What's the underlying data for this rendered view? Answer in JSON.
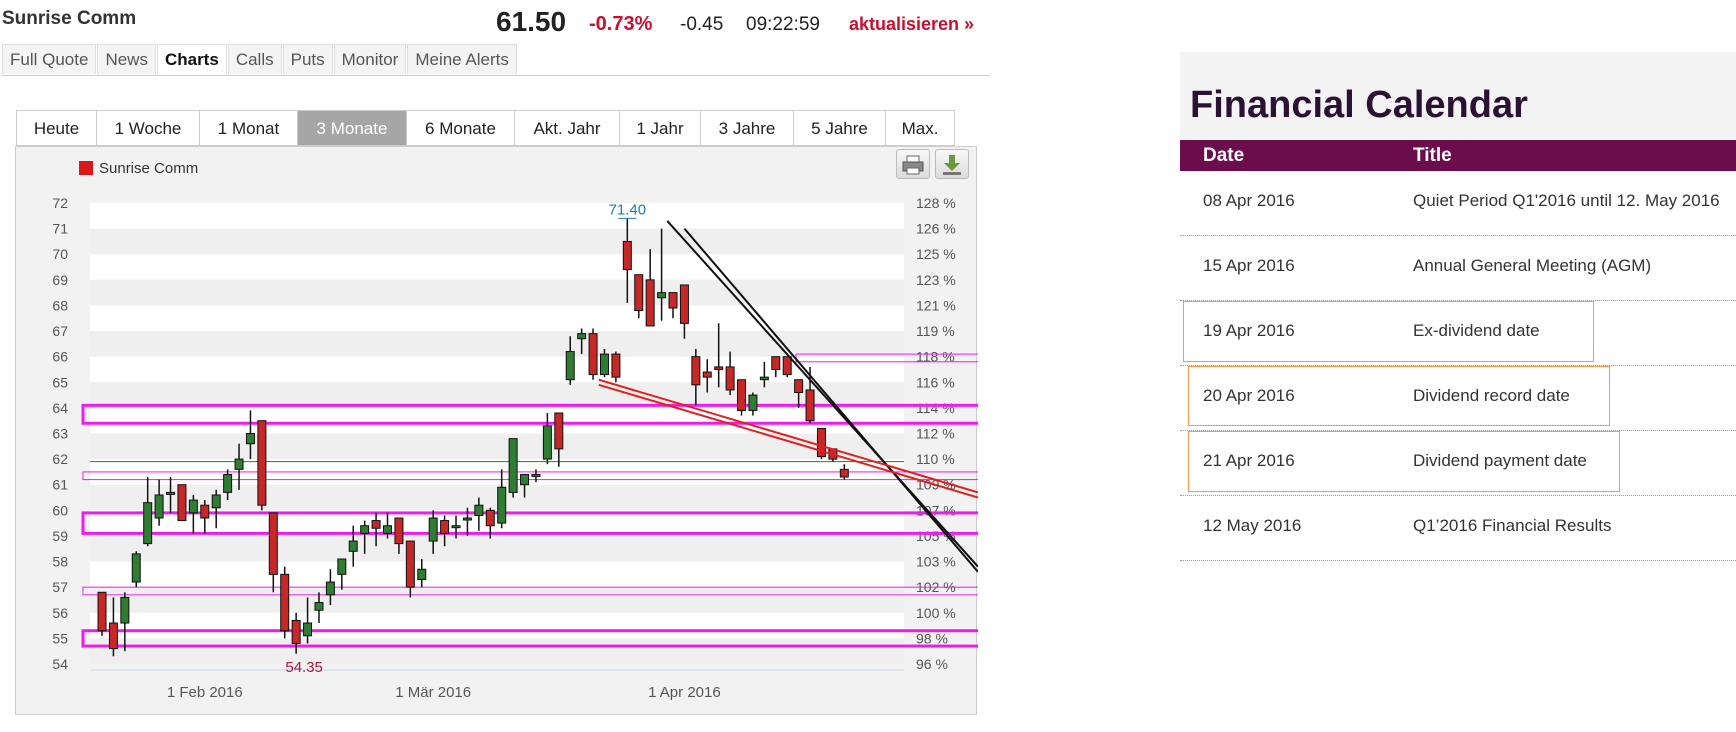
{
  "quote": {
    "company": "Sunrise Comm",
    "price": "61.50",
    "change_pct": "-0.73%",
    "change_abs": "-0.45",
    "time": "09:22:59",
    "refresh_label": "aktualisieren »"
  },
  "nav_tabs": [
    "Full Quote",
    "News",
    "Charts",
    "Calls",
    "Puts",
    "Monitor",
    "Meine Alerts"
  ],
  "nav_active": "Charts",
  "range_tabs": [
    "Heute",
    "1 Woche",
    "1 Monat",
    "3 Monate",
    "6 Monate",
    "Akt. Jahr",
    "1 Jahr",
    "3 Jahre",
    "5 Jahre",
    "Max."
  ],
  "range_active": "3 Monate",
  "toolbar": {
    "print_icon": "printer-icon",
    "download_icon": "download-icon"
  },
  "chart_data": {
    "type": "candlestick",
    "legend": "Sunrise Comm",
    "legend_color": "#d7191c",
    "up_color": "#2e7d32",
    "down_color": "#c62828",
    "ylim": [
      54,
      72
    ],
    "yticks": [
      "72",
      "71",
      "70",
      "69",
      "68",
      "67",
      "66",
      "65",
      "64",
      "63",
      "62",
      "61",
      "60",
      "59",
      "58",
      "57",
      "56",
      "55",
      "54"
    ],
    "y2ticks": [
      "128 %",
      "126 %",
      "125 %",
      "123 %",
      "121 %",
      "119 %",
      "118 %",
      "116 %",
      "114 %",
      "112 %",
      "110 %",
      "109 %",
      "107 %",
      "105 %",
      "103 %",
      "102 %",
      "100 %",
      "98 %",
      "96 %"
    ],
    "xticks": [
      {
        "label": "1 Feb 2016",
        "index": 9
      },
      {
        "label": "1 Mär 2016",
        "index": 29
      },
      {
        "label": "1 Apr 2016",
        "index": 51
      }
    ],
    "max_label": "71.40",
    "min_label": "54.35",
    "candles": [
      [
        56.8,
        56.6,
        55.3,
        55.1,
        56.8
      ],
      [
        55.6,
        55.4,
        54.6,
        54.3,
        56.6
      ],
      [
        55.6,
        55.4,
        56.6,
        54.5,
        56.8
      ],
      [
        57.2,
        57.1,
        58.3,
        57.0,
        58.4
      ],
      [
        58.7,
        58.5,
        60.3,
        58.6,
        61.3
      ],
      [
        59.7,
        59.6,
        60.6,
        59.4,
        61.2
      ],
      [
        60.7,
        60.7,
        60.7,
        59.9,
        61.3
      ],
      [
        61.0,
        60.9,
        59.6,
        59.6,
        61.0
      ],
      [
        59.9,
        59.8,
        60.4,
        59.1,
        60.6
      ],
      [
        60.2,
        60.1,
        59.7,
        59.1,
        60.4
      ],
      [
        60.1,
        60.0,
        60.6,
        59.3,
        60.8
      ],
      [
        60.7,
        60.5,
        61.4,
        60.4,
        61.6
      ],
      [
        61.6,
        61.4,
        62.0,
        60.8,
        62.6
      ],
      [
        62.6,
        62.4,
        63.0,
        62.0,
        63.9
      ],
      [
        63.5,
        63.3,
        60.2,
        60.0,
        63.5
      ],
      [
        59.9,
        59.8,
        57.5,
        56.8,
        59.9
      ],
      [
        57.5,
        57.3,
        55.3,
        55.0,
        57.8
      ],
      [
        55.7,
        55.5,
        54.8,
        54.4,
        56.0
      ],
      [
        55.1,
        55.0,
        55.6,
        54.8,
        56.6
      ],
      [
        56.1,
        56.0,
        56.4,
        55.6,
        56.8
      ],
      [
        56.7,
        56.4,
        57.2,
        56.3,
        57.7
      ],
      [
        57.5,
        57.4,
        58.1,
        56.9,
        58.1
      ],
      [
        58.4,
        58.3,
        58.8,
        57.8,
        59.4
      ],
      [
        59.1,
        59.0,
        59.4,
        58.3,
        59.6
      ],
      [
        59.6,
        59.4,
        59.3,
        58.6,
        59.9
      ],
      [
        59.1,
        58.9,
        59.4,
        58.9,
        59.9
      ],
      [
        59.7,
        59.6,
        58.7,
        58.3,
        59.7
      ],
      [
        58.8,
        58.7,
        57.0,
        56.6,
        58.8
      ],
      [
        57.3,
        57.2,
        57.7,
        57.0,
        58.1
      ],
      [
        58.8,
        58.7,
        59.7,
        58.3,
        60.0
      ],
      [
        59.6,
        59.4,
        59.1,
        58.6,
        59.8
      ],
      [
        59.4,
        59.3,
        59.4,
        58.9,
        59.8
      ],
      [
        59.7,
        59.6,
        59.7,
        59.0,
        60.1
      ],
      [
        59.8,
        59.7,
        60.2,
        59.2,
        60.5
      ],
      [
        60.0,
        59.9,
        59.4,
        58.9,
        60.1
      ],
      [
        59.5,
        59.3,
        60.9,
        59.3,
        61.6
      ],
      [
        60.7,
        60.5,
        62.8,
        60.5,
        62.8
      ],
      [
        61.0,
        60.8,
        61.4,
        60.5,
        61.4
      ],
      [
        61.4,
        61.4,
        61.4,
        61.1,
        61.6
      ],
      [
        62.0,
        61.9,
        63.3,
        61.8,
        63.8
      ],
      [
        63.8,
        63.6,
        62.4,
        61.7,
        63.8
      ],
      [
        65.1,
        64.9,
        66.2,
        64.9,
        66.8
      ],
      [
        66.7,
        66.6,
        66.9,
        66.1,
        67.1
      ],
      [
        66.9,
        66.8,
        65.3,
        65.1,
        67.1
      ],
      [
        65.3,
        65.2,
        66.1,
        65.2,
        66.3
      ],
      [
        66.1,
        66.0,
        65.2,
        65.0,
        66.2
      ],
      [
        70.5,
        70.4,
        69.4,
        68.1,
        71.4
      ],
      [
        69.2,
        69.1,
        67.8,
        67.5,
        69.2
      ],
      [
        69.0,
        68.9,
        67.2,
        67.2,
        70.2
      ],
      [
        68.3,
        68.2,
        68.5,
        67.4,
        71.0
      ],
      [
        68.5,
        68.3,
        67.9,
        67.5,
        68.5
      ],
      [
        68.8,
        68.7,
        67.3,
        66.7,
        68.8
      ],
      [
        66.0,
        65.9,
        64.9,
        64.1,
        66.3
      ],
      [
        65.4,
        65.3,
        65.2,
        64.6,
        65.9
      ],
      [
        65.6,
        65.5,
        65.5,
        64.8,
        67.3
      ],
      [
        65.6,
        65.5,
        64.7,
        64.5,
        66.2
      ],
      [
        65.1,
        65.0,
        63.9,
        63.7,
        65.1
      ],
      [
        63.9,
        63.8,
        64.5,
        63.7,
        64.6
      ],
      [
        65.1,
        65.0,
        65.2,
        64.8,
        65.8
      ],
      [
        66.0,
        65.8,
        65.5,
        65.2,
        66.0
      ],
      [
        66.0,
        65.9,
        65.3,
        65.2,
        66.0
      ],
      [
        65.1,
        65.0,
        64.6,
        64.0,
        65.1
      ],
      [
        64.7,
        64.6,
        63.5,
        63.4,
        65.6
      ],
      [
        63.2,
        63.1,
        62.1,
        62.0,
        63.2
      ],
      [
        62.4,
        62.3,
        62.0,
        61.9,
        62.4
      ],
      [
        61.6,
        61.5,
        61.3,
        61.2,
        61.8
      ]
    ]
  },
  "calendar": {
    "title": "Financial Calendar",
    "col_date": "Date",
    "col_title": "Title",
    "rows": [
      {
        "date": "08 Apr 2016",
        "title": "Quiet Period Q1'2016 until 12. May 2016"
      },
      {
        "date": "15 Apr 2016",
        "title": "Annual General Meeting (AGM)"
      },
      {
        "date": "19 Apr 2016",
        "title": "Ex-dividend date"
      },
      {
        "date": "20 Apr 2016",
        "title": "Dividend record date"
      },
      {
        "date": "21 Apr 2016",
        "title": "Dividend payment date"
      },
      {
        "date": "12 May 2016",
        "title": "Q1’2016 Financial Results"
      }
    ]
  }
}
